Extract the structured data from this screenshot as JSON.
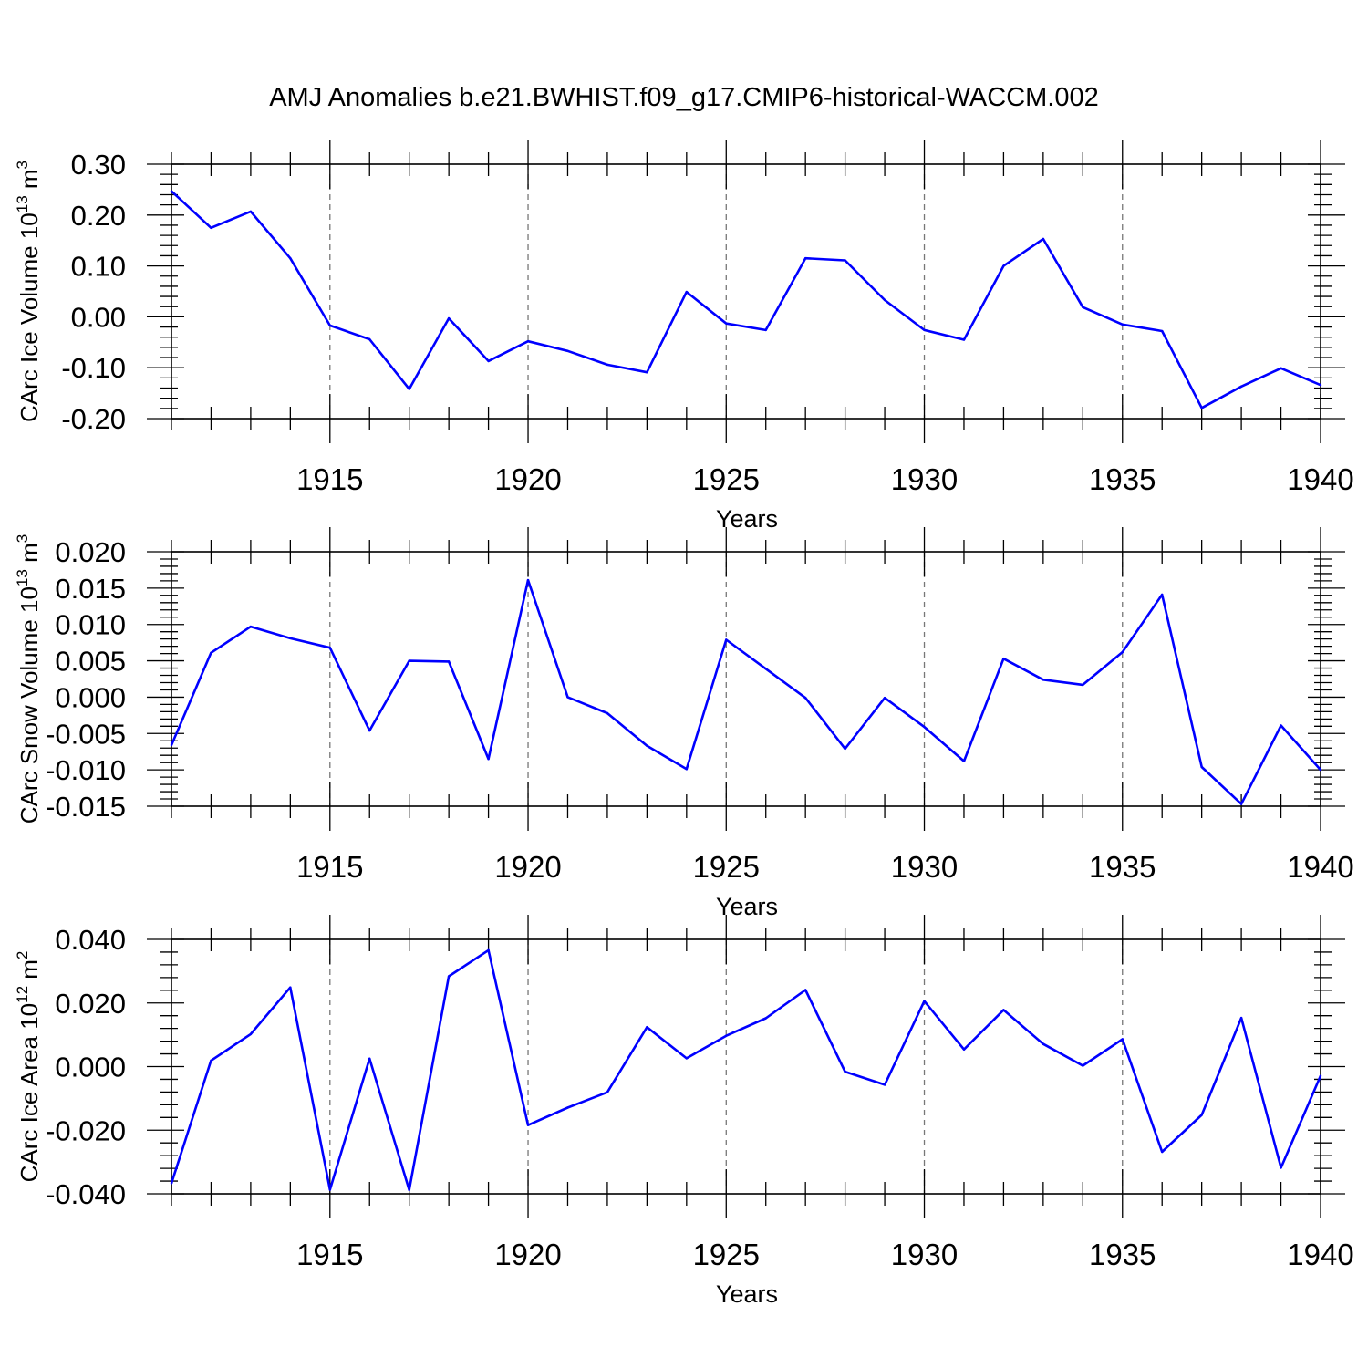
{
  "title": "AMJ Anomalies b.e21.BWHIST.f09_g17.CMIP6-historical-WACCM.002",
  "colors": {
    "line": "#0000ff",
    "axis": "#000000",
    "grid": "#777777"
  },
  "chart_data": [
    {
      "type": "line",
      "ylabel": "CArc Ice Volume 10",
      "ylabel_exp": "13",
      "ylabel_unit": " m",
      "ylabel_unit_exp": "3",
      "xlabel": "Years",
      "xlim": [
        1911,
        1940
      ],
      "ylim": [
        -0.2,
        0.3
      ],
      "yticks": [
        -0.2,
        -0.1,
        0.0,
        0.1,
        0.2,
        0.3
      ],
      "ytick_labels": [
        "-0.20",
        "-0.10",
        "0.00",
        "0.10",
        "0.20",
        "0.30"
      ],
      "xticks": [
        1915,
        1920,
        1925,
        1930,
        1935,
        1940
      ],
      "xtick_labels": [
        "1915",
        "1920",
        "1925",
        "1930",
        "1935",
        "1940"
      ],
      "grid": "vertical-dashed",
      "x": [
        1911,
        1912,
        1913,
        1914,
        1915,
        1916,
        1917,
        1918,
        1919,
        1920,
        1921,
        1922,
        1923,
        1924,
        1925,
        1926,
        1927,
        1928,
        1929,
        1930,
        1931,
        1932,
        1933,
        1934,
        1935,
        1936,
        1937,
        1938,
        1939,
        1940
      ],
      "values": [
        0.247,
        0.175,
        0.207,
        0.115,
        -0.017,
        -0.044,
        -0.142,
        -0.003,
        -0.087,
        -0.048,
        -0.067,
        -0.094,
        -0.109,
        0.049,
        -0.013,
        -0.026,
        0.115,
        0.111,
        0.033,
        -0.026,
        -0.045,
        0.1,
        0.153,
        0.019,
        -0.015,
        -0.028,
        -0.179,
        -0.137,
        -0.101,
        -0.134
      ]
    },
    {
      "type": "line",
      "ylabel": "CArc Snow Volume 10",
      "ylabel_exp": "13",
      "ylabel_unit": " m",
      "ylabel_unit_exp": "3",
      "xlabel": "Years",
      "xlim": [
        1911,
        1940
      ],
      "ylim": [
        -0.015,
        0.02
      ],
      "yticks": [
        -0.015,
        -0.01,
        -0.005,
        0.0,
        0.005,
        0.01,
        0.015,
        0.02
      ],
      "ytick_labels": [
        "-0.015",
        "-0.010",
        "-0.005",
        "0.000",
        "0.005",
        "0.010",
        "0.015",
        "0.020"
      ],
      "xticks": [
        1915,
        1920,
        1925,
        1930,
        1935,
        1940
      ],
      "xtick_labels": [
        "1915",
        "1920",
        "1925",
        "1930",
        "1935",
        "1940"
      ],
      "grid": "vertical-dashed",
      "x": [
        1911,
        1912,
        1913,
        1914,
        1915,
        1916,
        1917,
        1918,
        1919,
        1920,
        1921,
        1922,
        1923,
        1924,
        1925,
        1926,
        1927,
        1928,
        1929,
        1930,
        1931,
        1932,
        1933,
        1934,
        1935,
        1936,
        1937,
        1938,
        1939,
        1940
      ],
      "values": [
        -0.0066,
        0.0061,
        0.0097,
        0.0081,
        0.0068,
        -0.0046,
        0.005,
        0.0049,
        -0.0085,
        0.0161,
        0.0,
        -0.0022,
        -0.0067,
        -0.0099,
        0.0079,
        0.0039,
        -0.0001,
        -0.0071,
        -0.0001,
        -0.0041,
        -0.0088,
        0.0053,
        0.0024,
        0.0017,
        0.0062,
        0.0141,
        -0.0096,
        -0.0147,
        -0.0039,
        -0.01
      ]
    },
    {
      "type": "line",
      "ylabel": "CArc Ice Area 10",
      "ylabel_exp": "12",
      "ylabel_unit": " m",
      "ylabel_unit_exp": "2",
      "xlabel": "Years",
      "xlim": [
        1911,
        1940
      ],
      "ylim": [
        -0.04,
        0.04
      ],
      "yticks": [
        -0.04,
        -0.02,
        0.0,
        0.02,
        0.04
      ],
      "ytick_labels": [
        "-0.040",
        "-0.020",
        "0.000",
        "0.020",
        "0.040"
      ],
      "xticks": [
        1915,
        1920,
        1925,
        1930,
        1935,
        1940
      ],
      "xtick_labels": [
        "1915",
        "1920",
        "1925",
        "1930",
        "1935",
        "1940"
      ],
      "grid": "vertical-dashed",
      "x": [
        1911,
        1912,
        1913,
        1914,
        1915,
        1916,
        1917,
        1918,
        1919,
        1920,
        1921,
        1922,
        1923,
        1924,
        1925,
        1926,
        1927,
        1928,
        1929,
        1930,
        1931,
        1932,
        1933,
        1934,
        1935,
        1936,
        1937,
        1938,
        1939,
        1940
      ],
      "values": [
        -0.0367,
        0.0019,
        0.0102,
        0.0249,
        -0.0387,
        0.0025,
        -0.0388,
        0.0284,
        0.0366,
        -0.0184,
        -0.0129,
        -0.0081,
        0.0124,
        0.0026,
        0.0097,
        0.0152,
        0.0241,
        -0.0016,
        -0.0057,
        0.0206,
        0.0054,
        0.0178,
        0.0071,
        0.0003,
        0.0086,
        -0.0268,
        -0.0152,
        0.0153,
        -0.0318,
        -0.0029
      ]
    }
  ]
}
